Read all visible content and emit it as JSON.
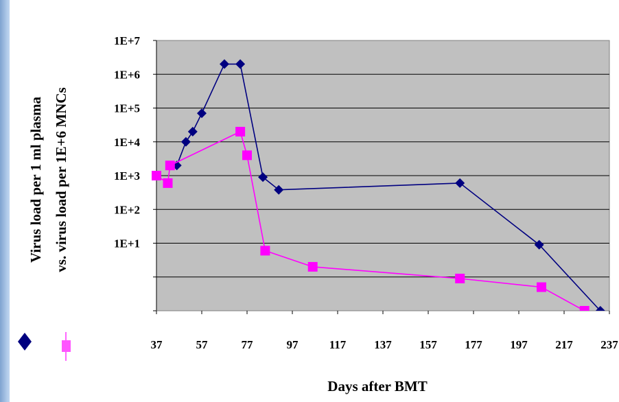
{
  "chart_data": {
    "type": "line",
    "y_scale": "log",
    "ylabel_line1": "Virus load per 1 ml  plasma",
    "ylabel_line2": "vs. virus load per 1E+6 MNCs",
    "xlabel": "Days after BMT",
    "x_ticks": [
      "37",
      "57",
      "77",
      "97",
      "117",
      "137",
      "157",
      "177",
      "197",
      "217",
      "237"
    ],
    "y_ticks": [
      "1E+7",
      "1E+6",
      "1E+5",
      "1E+4",
      "1E+3",
      "1E+2",
      "1E+1"
    ],
    "y_tick_values": [
      10000000,
      1000000,
      100000,
      10000,
      1000,
      100,
      10
    ],
    "xlim": [
      37,
      237
    ],
    "ylim": [
      0.1,
      10000000
    ],
    "grid": true,
    "plot_background": "#c0c0c0",
    "series": [
      {
        "color": "#000080",
        "marker": "diamond",
        "points": [
          [
            46,
            2000
          ],
          [
            50,
            10000
          ],
          [
            53,
            20000
          ],
          [
            57,
            70000
          ],
          [
            67,
            2000000
          ],
          [
            74,
            2000000
          ],
          [
            84,
            900
          ],
          [
            91,
            380
          ],
          [
            171,
            600
          ],
          [
            206,
            9
          ],
          [
            233,
            0.1
          ]
        ]
      },
      {
        "color": "#ff00ff",
        "marker": "square",
        "points": [
          [
            37,
            1000
          ],
          [
            42,
            600
          ],
          [
            43,
            2000
          ],
          [
            74,
            20000
          ],
          [
            77,
            4000
          ],
          [
            85,
            6
          ],
          [
            106,
            2
          ],
          [
            171,
            0.9
          ],
          [
            207,
            0.5
          ],
          [
            226,
            0.1
          ]
        ]
      }
    ]
  }
}
